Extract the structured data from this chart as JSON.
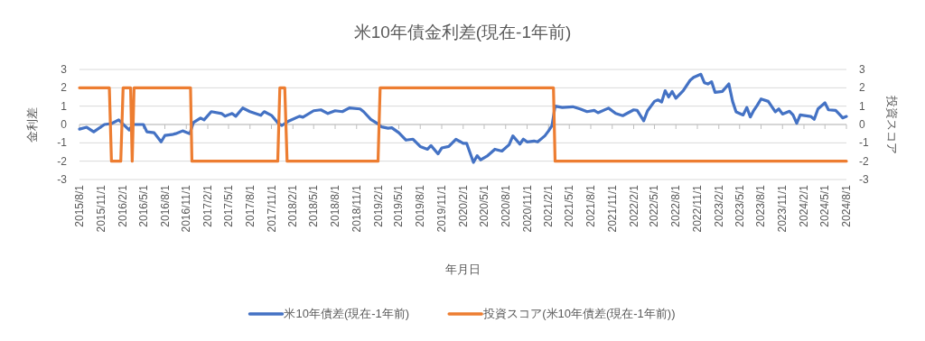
{
  "chart_data": {
    "type": "line",
    "title": "米10年債金利差(現在-1年前)",
    "xlabel": "年月日",
    "ylabel": "金利差",
    "y2label": "投資スコア",
    "xlim": [
      "2015-08-01",
      "2024-08-01"
    ],
    "xticks": [
      {
        "value": "2015-08-01",
        "label": "2015/8/1"
      },
      {
        "value": "2015-11-01",
        "label": "2015/11/1"
      },
      {
        "value": "2016-02-01",
        "label": "2016/2/1"
      },
      {
        "value": "2016-05-01",
        "label": "2016/5/1"
      },
      {
        "value": "2016-08-01",
        "label": "2016/8/1"
      },
      {
        "value": "2016-11-01",
        "label": "2016/11/1"
      },
      {
        "value": "2017-02-01",
        "label": "2017/2/1"
      },
      {
        "value": "2017-05-01",
        "label": "2017/5/1"
      },
      {
        "value": "2017-08-01",
        "label": "2017/8/1"
      },
      {
        "value": "2017-11-01",
        "label": "2017/11/1"
      },
      {
        "value": "2018-02-01",
        "label": "2018/2/1"
      },
      {
        "value": "2018-05-01",
        "label": "2018/5/1"
      },
      {
        "value": "2018-08-01",
        "label": "2018/8/1"
      },
      {
        "value": "2018-11-01",
        "label": "2018/11/1"
      },
      {
        "value": "2019-02-01",
        "label": "2019/2/1"
      },
      {
        "value": "2019-05-01",
        "label": "2019/5/1"
      },
      {
        "value": "2019-08-01",
        "label": "2019/8/1"
      },
      {
        "value": "2019-11-01",
        "label": "2019/11/1"
      },
      {
        "value": "2020-02-01",
        "label": "2020/2/1"
      },
      {
        "value": "2020-05-01",
        "label": "2020/5/1"
      },
      {
        "value": "2020-08-01",
        "label": "2020/8/1"
      },
      {
        "value": "2020-11-01",
        "label": "2020/11/1"
      },
      {
        "value": "2021-02-01",
        "label": "2021/2/1"
      },
      {
        "value": "2021-05-01",
        "label": "2021/5/1"
      },
      {
        "value": "2021-08-01",
        "label": "2021/8/1"
      },
      {
        "value": "2021-11-01",
        "label": "2021/11/1"
      },
      {
        "value": "2022-02-01",
        "label": "2022/2/1"
      },
      {
        "value": "2022-05-01",
        "label": "2022/5/1"
      },
      {
        "value": "2022-08-01",
        "label": "2022/8/1"
      },
      {
        "value": "2022-11-01",
        "label": "2022/11/1"
      },
      {
        "value": "2023-02-01",
        "label": "2023/2/1"
      },
      {
        "value": "2023-05-01",
        "label": "2023/5/1"
      },
      {
        "value": "2023-08-01",
        "label": "2023/8/1"
      },
      {
        "value": "2023-11-01",
        "label": "2023/11/1"
      },
      {
        "value": "2024-02-01",
        "label": "2024/2/1"
      },
      {
        "value": "2024-05-01",
        "label": "2024/5/1"
      },
      {
        "value": "2024-08-01",
        "label": "2024/8/1"
      }
    ],
    "ylim": [
      -3,
      3
    ],
    "yticks": [
      -3,
      -2,
      -1,
      0,
      1,
      2,
      3
    ],
    "y2lim": [
      -3,
      3
    ],
    "y2ticks": [
      -3,
      -2,
      -1,
      0,
      1,
      2,
      3
    ],
    "grid": "y",
    "legend": "bottom",
    "series": [
      {
        "name": "米10年債差(現在-1年前)",
        "color": "#4472c4",
        "x": [
          "2015-08-01",
          "2015-09-01",
          "2015-10-01",
          "2015-11-16",
          "2015-12-16",
          "2016-01-16",
          "2016-03-01",
          "2016-03-16",
          "2016-05-01",
          "2016-05-16",
          "2016-06-16",
          "2016-07-16",
          "2016-08-01",
          "2016-09-01",
          "2016-09-16",
          "2016-10-16",
          "2016-11-16",
          "2016-12-01",
          "2017-01-01",
          "2017-01-16",
          "2017-02-16",
          "2017-04-01",
          "2017-04-16",
          "2017-05-16",
          "2017-06-01",
          "2017-07-01",
          "2017-08-01",
          "2017-09-16",
          "2017-10-01",
          "2017-11-01",
          "2017-12-01",
          "2017-12-16",
          "2018-01-16",
          "2018-03-01",
          "2018-03-16",
          "2018-05-01",
          "2018-06-01",
          "2018-07-01",
          "2018-08-01",
          "2018-09-01",
          "2018-10-01",
          "2018-11-16",
          "2018-12-01",
          "2019-01-01",
          "2019-02-01",
          "2019-02-16",
          "2019-03-16",
          "2019-04-01",
          "2019-05-01",
          "2019-06-01",
          "2019-07-01",
          "2019-08-01",
          "2019-09-01",
          "2019-09-16",
          "2019-10-16",
          "2019-11-01",
          "2019-12-01",
          "2020-01-01",
          "2020-02-01",
          "2020-02-16",
          "2020-03-16",
          "2020-04-01",
          "2020-04-16",
          "2020-05-16",
          "2020-06-16",
          "2020-07-16",
          "2020-08-16",
          "2020-09-01",
          "2020-10-01",
          "2020-10-16",
          "2020-11-01",
          "2020-12-01",
          "2020-12-16",
          "2021-01-16",
          "2021-02-01",
          "2021-02-16",
          "2021-03-01",
          "2021-04-01",
          "2021-05-16",
          "2021-06-16",
          "2021-07-16",
          "2021-08-16",
          "2021-09-01",
          "2021-10-16",
          "2021-11-16",
          "2021-12-16",
          "2022-02-01",
          "2022-02-16",
          "2022-03-16",
          "2022-04-01",
          "2022-05-01",
          "2022-05-16",
          "2022-06-01",
          "2022-06-16",
          "2022-07-01",
          "2022-07-16",
          "2022-08-01",
          "2022-09-01",
          "2022-10-01",
          "2022-10-16",
          "2022-11-16",
          "2022-12-01",
          "2022-12-16",
          "2023-01-01",
          "2023-01-16",
          "2023-02-16",
          "2023-03-16",
          "2023-04-01",
          "2023-04-16",
          "2023-05-16",
          "2023-06-01",
          "2023-06-16",
          "2023-07-01",
          "2023-07-16",
          "2023-08-01",
          "2023-09-01",
          "2023-10-01",
          "2023-10-16",
          "2023-11-01",
          "2023-12-01",
          "2023-12-16",
          "2024-01-01",
          "2024-01-16",
          "2024-03-01",
          "2024-03-16",
          "2024-04-01",
          "2024-05-01",
          "2024-05-16",
          "2024-06-16",
          "2024-07-01",
          "2024-07-16",
          "2024-08-01"
        ],
        "values": [
          -0.25,
          -0.15,
          -0.4,
          0.0,
          0.05,
          0.25,
          -0.3,
          0.0,
          0.0,
          -0.4,
          -0.45,
          -0.95,
          -0.6,
          -0.55,
          -0.5,
          -0.35,
          -0.5,
          0.1,
          0.35,
          0.25,
          0.7,
          0.6,
          0.45,
          0.6,
          0.45,
          0.9,
          0.7,
          0.5,
          0.7,
          0.5,
          0.05,
          -0.05,
          0.2,
          0.45,
          0.4,
          0.75,
          0.8,
          0.6,
          0.75,
          0.7,
          0.9,
          0.85,
          0.7,
          0.28,
          0.03,
          -0.13,
          -0.2,
          -0.18,
          -0.45,
          -0.85,
          -0.8,
          -1.2,
          -1.35,
          -1.15,
          -1.6,
          -1.28,
          -1.2,
          -0.8,
          -1.03,
          -1.03,
          -2.07,
          -1.7,
          -1.93,
          -1.7,
          -1.35,
          -1.45,
          -1.1,
          -0.62,
          -1.07,
          -0.8,
          -0.95,
          -0.9,
          -0.95,
          -0.62,
          -0.35,
          -0.05,
          1.0,
          0.93,
          0.97,
          0.85,
          0.7,
          0.77,
          0.64,
          0.89,
          0.6,
          0.48,
          0.8,
          0.77,
          0.2,
          0.74,
          1.26,
          1.34,
          1.23,
          1.84,
          1.5,
          1.8,
          1.43,
          1.84,
          2.41,
          2.57,
          2.74,
          2.28,
          2.21,
          2.33,
          1.75,
          1.8,
          2.21,
          1.26,
          0.69,
          0.52,
          0.93,
          0.41,
          0.77,
          1.05,
          1.39,
          1.26,
          0.69,
          0.85,
          0.57,
          0.72,
          0.52,
          0.07,
          0.52,
          0.44,
          0.28,
          0.85,
          1.18,
          0.8,
          0.77,
          0.57,
          0.36,
          0.44
        ]
      },
      {
        "name": "投資スコア(米10年債差(現在-1年前))",
        "color": "#ed7d31",
        "x": [
          "2015-08-01",
          "2015-12-07",
          "2015-12-16",
          "2016-01-25",
          "2016-02-04",
          "2016-03-07",
          "2016-03-14",
          "2016-03-22",
          "2016-11-19",
          "2016-11-25",
          "2017-11-28",
          "2017-12-07",
          "2017-12-28",
          "2018-01-07",
          "2019-02-01",
          "2019-02-10",
          "2021-02-22",
          "2021-03-01",
          "2024-08-01"
        ],
        "values": [
          2,
          2,
          -2,
          -2,
          2,
          2,
          -2,
          2,
          2,
          -2,
          -2,
          2,
          2,
          -2,
          -2,
          2,
          2,
          -2,
          -2
        ]
      }
    ]
  }
}
